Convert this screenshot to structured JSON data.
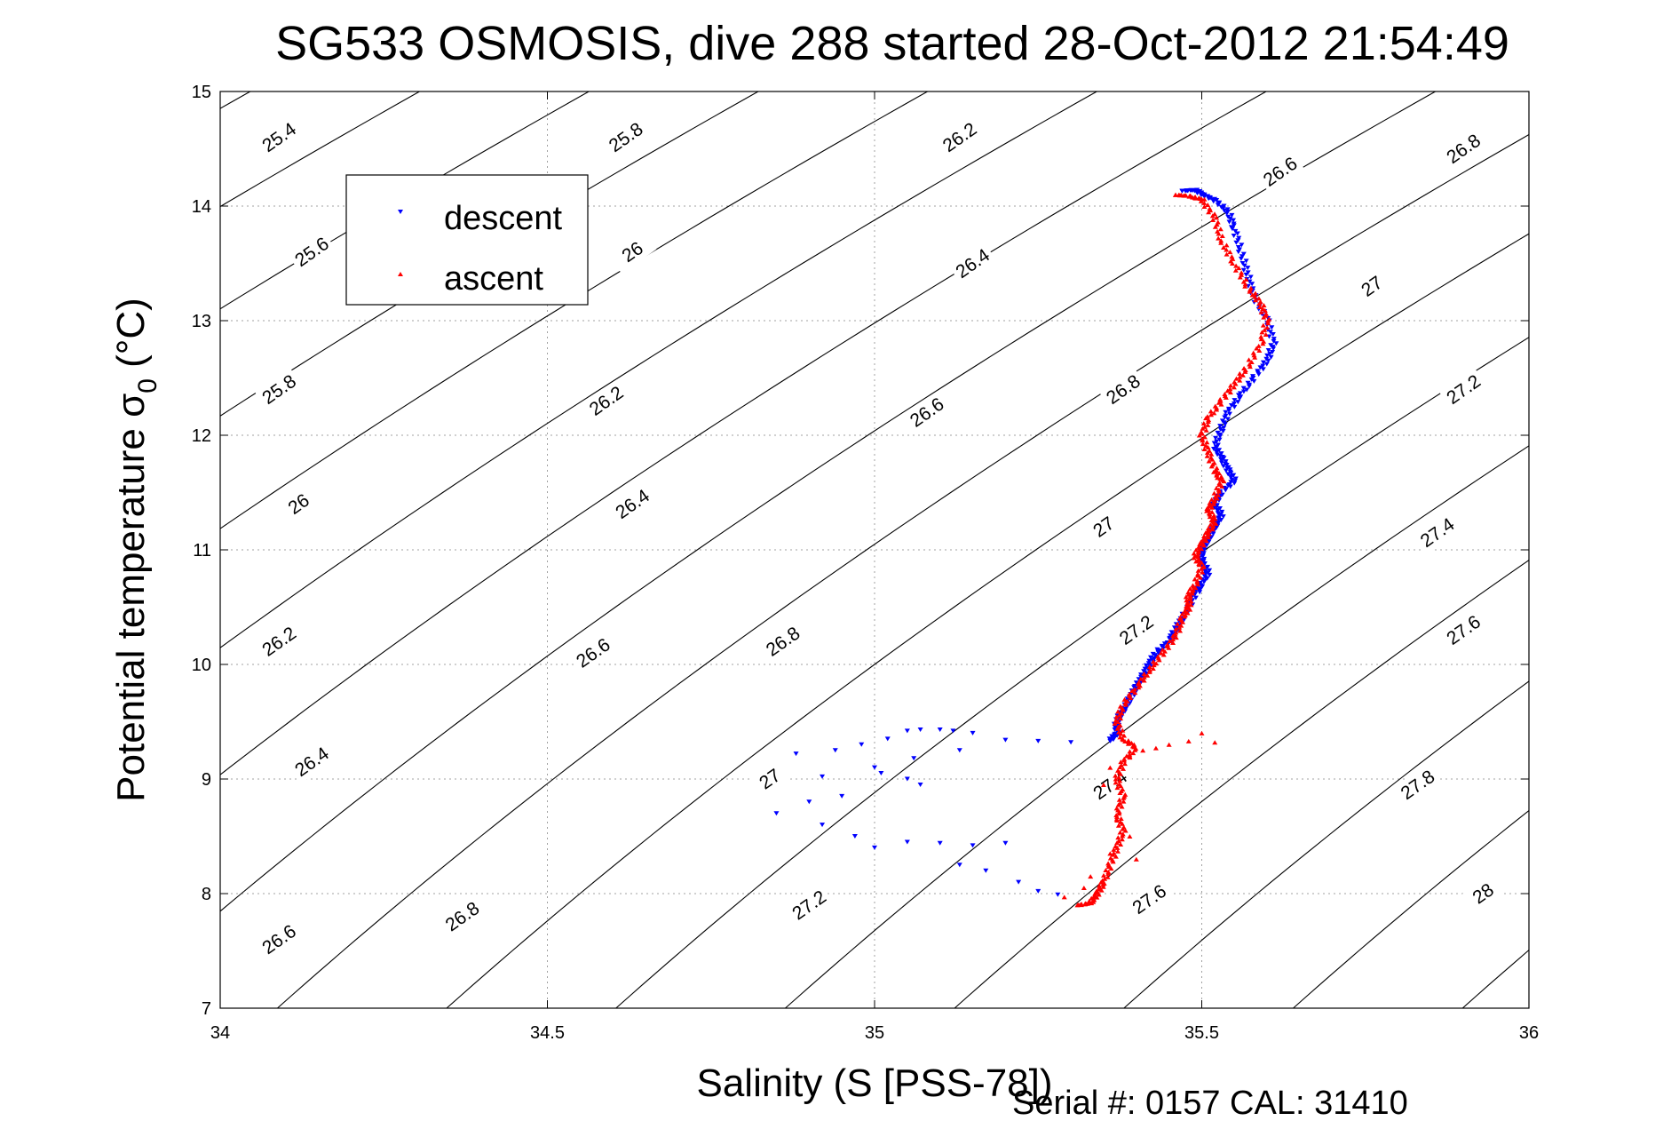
{
  "chart_data": {
    "type": "scatter",
    "title": "SG533 OSMOSIS, dive 288 started 28-Oct-2012 21:54:49",
    "xlabel": "Salinity (S [PSS-78])",
    "ylabel_main": "Potential temperature σ",
    "ylabel_sub": "0",
    "ylabel_unit": " (°C)",
    "footer": "Serial #: 0157  CAL: 31410",
    "xlim": [
      34,
      36
    ],
    "ylim": [
      7,
      15
    ],
    "xticks": [
      "34",
      "34.5",
      "35",
      "35.5",
      "36"
    ],
    "yticks": [
      "7",
      "8",
      "9",
      "10",
      "11",
      "12",
      "13",
      "14",
      "15"
    ],
    "grid": true,
    "legend_placement": "top-left",
    "colors": {
      "descent": "#0000ff",
      "ascent": "#ff0000",
      "contour": "#000000",
      "grid": "#a0a0a0"
    },
    "density_contours": {
      "levels": [
        "25.4",
        "25.6",
        "25.8",
        "26",
        "26.2",
        "26.4",
        "26.6",
        "26.8",
        "27",
        "27.2",
        "27.4",
        "27.6",
        "27.8",
        "28"
      ],
      "labels": [
        {
          "text": "25.4",
          "s": 34.09,
          "t": 14.6
        },
        {
          "text": "25.8",
          "s": 34.62,
          "t": 14.6
        },
        {
          "text": "26.2",
          "s": 35.13,
          "t": 14.6
        },
        {
          "text": "26.6",
          "s": 35.62,
          "t": 14.3
        },
        {
          "text": "26.8",
          "s": 35.9,
          "t": 14.5
        },
        {
          "text": "25.6",
          "s": 34.14,
          "t": 13.6
        },
        {
          "text": "26",
          "s": 34.63,
          "t": 13.6
        },
        {
          "text": "26.4",
          "s": 35.15,
          "t": 13.5
        },
        {
          "text": "27",
          "s": 35.76,
          "t": 13.3
        },
        {
          "text": "25.8",
          "s": 34.09,
          "t": 12.4
        },
        {
          "text": "26.2",
          "s": 34.59,
          "t": 12.3
        },
        {
          "text": "26.6",
          "s": 35.08,
          "t": 12.2
        },
        {
          "text": "26.8",
          "s": 35.38,
          "t": 12.4
        },
        {
          "text": "27.2",
          "s": 35.9,
          "t": 12.4
        },
        {
          "text": "26",
          "s": 34.12,
          "t": 11.4
        },
        {
          "text": "26.4",
          "s": 34.63,
          "t": 11.4
        },
        {
          "text": "27",
          "s": 35.35,
          "t": 11.2
        },
        {
          "text": "27.4",
          "s": 35.86,
          "t": 11.15
        },
        {
          "text": "26.2",
          "s": 34.09,
          "t": 10.2
        },
        {
          "text": "26.6",
          "s": 34.57,
          "t": 10.1
        },
        {
          "text": "26.8",
          "s": 34.86,
          "t": 10.2
        },
        {
          "text": "27.2",
          "s": 35.4,
          "t": 10.3
        },
        {
          "text": "27.6",
          "s": 35.9,
          "t": 10.3
        },
        {
          "text": "26.4",
          "s": 34.14,
          "t": 9.15
        },
        {
          "text": "27",
          "s": 34.84,
          "t": 9.0
        },
        {
          "text": "27.4",
          "s": 35.36,
          "t": 8.95
        },
        {
          "text": "27.8",
          "s": 35.83,
          "t": 8.95
        },
        {
          "text": "26.6",
          "s": 34.09,
          "t": 7.6
        },
        {
          "text": "26.8",
          "s": 34.37,
          "t": 7.8
        },
        {
          "text": "27.2",
          "s": 34.9,
          "t": 7.9
        },
        {
          "text": "27.6",
          "s": 35.42,
          "t": 7.95
        },
        {
          "text": "28",
          "s": 35.93,
          "t": 8.0
        }
      ]
    },
    "series": [
      {
        "name": "descent",
        "marker": "triangle-down",
        "color": "#0000ff",
        "path": [
          [
            35.47,
            14.13
          ],
          [
            35.49,
            14.14
          ],
          [
            35.5,
            14.1
          ],
          [
            35.52,
            14.05
          ],
          [
            35.54,
            13.95
          ],
          [
            35.55,
            13.8
          ],
          [
            35.56,
            13.6
          ],
          [
            35.57,
            13.4
          ],
          [
            35.58,
            13.2
          ],
          [
            35.6,
            13.0
          ],
          [
            35.61,
            12.8
          ],
          [
            35.6,
            12.65
          ],
          [
            35.58,
            12.5
          ],
          [
            35.56,
            12.35
          ],
          [
            35.54,
            12.2
          ],
          [
            35.53,
            12.05
          ],
          [
            35.52,
            11.9
          ],
          [
            35.53,
            11.8
          ],
          [
            35.54,
            11.7
          ],
          [
            35.55,
            11.6
          ],
          [
            35.53,
            11.5
          ],
          [
            35.52,
            11.4
          ],
          [
            35.53,
            11.3
          ],
          [
            35.52,
            11.2
          ],
          [
            35.51,
            11.1
          ],
          [
            35.5,
            11.0
          ],
          [
            35.5,
            10.9
          ],
          [
            35.51,
            10.8
          ],
          [
            35.5,
            10.7
          ],
          [
            35.49,
            10.6
          ],
          [
            35.47,
            10.4
          ],
          [
            35.46,
            10.3
          ],
          [
            35.45,
            10.2
          ],
          [
            35.43,
            10.1
          ],
          [
            35.42,
            10.0
          ],
          [
            35.41,
            9.9
          ],
          [
            35.4,
            9.8
          ],
          [
            35.39,
            9.7
          ],
          [
            35.38,
            9.6
          ],
          [
            35.37,
            9.5
          ],
          [
            35.37,
            9.4
          ],
          [
            35.36,
            9.33
          ]
        ],
        "scatter": [
          [
            35.3,
            9.32
          ],
          [
            35.25,
            9.33
          ],
          [
            35.2,
            9.34
          ],
          [
            35.15,
            9.4
          ],
          [
            35.12,
            9.42
          ],
          [
            35.1,
            9.43
          ],
          [
            35.07,
            9.43
          ],
          [
            35.05,
            9.42
          ],
          [
            35.02,
            9.35
          ],
          [
            34.98,
            9.3
          ],
          [
            34.94,
            9.25
          ],
          [
            34.88,
            9.22
          ],
          [
            35.0,
            9.1
          ],
          [
            35.05,
            9.0
          ],
          [
            35.07,
            8.95
          ],
          [
            34.95,
            8.85
          ],
          [
            34.9,
            8.8
          ],
          [
            34.85,
            8.7
          ],
          [
            34.92,
            8.6
          ],
          [
            34.97,
            8.5
          ],
          [
            35.0,
            8.4
          ],
          [
            35.05,
            8.45
          ],
          [
            35.1,
            8.44
          ],
          [
            35.15,
            8.42
          ],
          [
            35.2,
            8.44
          ],
          [
            35.13,
            8.25
          ],
          [
            35.17,
            8.2
          ],
          [
            35.22,
            8.1
          ],
          [
            35.25,
            8.02
          ],
          [
            35.28,
            7.99
          ],
          [
            35.06,
            9.18
          ],
          [
            35.13,
            9.25
          ],
          [
            35.01,
            9.05
          ],
          [
            34.92,
            9.02
          ]
        ]
      },
      {
        "name": "ascent",
        "marker": "triangle-up",
        "color": "#ff0000",
        "path": [
          [
            35.46,
            14.1
          ],
          [
            35.48,
            14.09
          ],
          [
            35.5,
            14.06
          ],
          [
            35.52,
            13.9
          ],
          [
            35.53,
            13.7
          ],
          [
            35.55,
            13.5
          ],
          [
            35.57,
            13.3
          ],
          [
            35.59,
            13.15
          ],
          [
            35.6,
            13.0
          ],
          [
            35.59,
            12.8
          ],
          [
            35.57,
            12.6
          ],
          [
            35.55,
            12.45
          ],
          [
            35.53,
            12.3
          ],
          [
            35.51,
            12.15
          ],
          [
            35.5,
            12.0
          ],
          [
            35.51,
            11.85
          ],
          [
            35.52,
            11.7
          ],
          [
            35.53,
            11.6
          ],
          [
            35.52,
            11.45
          ],
          [
            35.51,
            11.35
          ],
          [
            35.52,
            11.25
          ],
          [
            35.51,
            11.15
          ],
          [
            35.5,
            11.05
          ],
          [
            35.49,
            10.95
          ],
          [
            35.5,
            10.85
          ],
          [
            35.49,
            10.7
          ],
          [
            35.48,
            10.6
          ],
          [
            35.48,
            10.5
          ],
          [
            35.47,
            10.4
          ],
          [
            35.46,
            10.25
          ],
          [
            35.44,
            10.1
          ],
          [
            35.42,
            9.95
          ],
          [
            35.4,
            9.8
          ],
          [
            35.38,
            9.65
          ],
          [
            35.37,
            9.5
          ],
          [
            35.38,
            9.35
          ],
          [
            35.4,
            9.28
          ],
          [
            35.38,
            9.15
          ],
          [
            35.37,
            9.0
          ],
          [
            35.38,
            8.85
          ],
          [
            35.37,
            8.7
          ],
          [
            35.38,
            8.55
          ],
          [
            35.37,
            8.4
          ],
          [
            35.36,
            8.25
          ],
          [
            35.35,
            8.1
          ],
          [
            35.34,
            8.0
          ],
          [
            35.33,
            7.92
          ],
          [
            35.31,
            7.9
          ]
        ],
        "scatter": [
          [
            35.45,
            9.3
          ],
          [
            35.48,
            9.33
          ],
          [
            35.52,
            9.32
          ],
          [
            35.5,
            9.4
          ],
          [
            35.43,
            9.27
          ],
          [
            35.41,
            9.25
          ],
          [
            35.39,
            9.2
          ],
          [
            35.36,
            8.35
          ],
          [
            35.33,
            8.15
          ],
          [
            35.32,
            8.05
          ],
          [
            35.29,
            7.97
          ],
          [
            35.37,
            8.65
          ],
          [
            35.39,
            8.5
          ],
          [
            35.4,
            8.3
          ],
          [
            35.36,
            9.1
          ],
          [
            35.35,
            8.95
          ]
        ]
      }
    ]
  }
}
